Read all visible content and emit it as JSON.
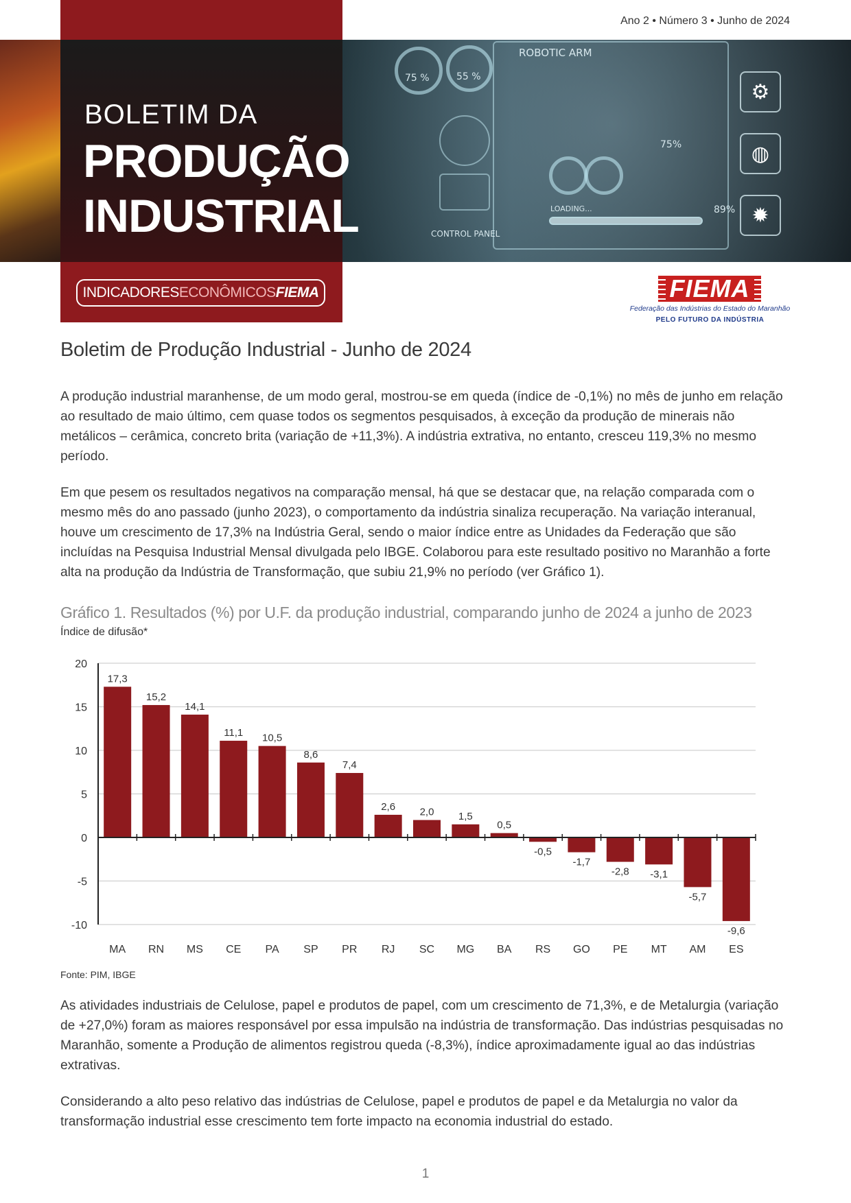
{
  "header": {
    "issue": "Ano 2 • Número 3 • Junho de 2024",
    "title_small": "BOLETIM DA",
    "title_line1": "PRODUÇÃO",
    "title_line2": "INDUSTRIAL",
    "tag_part1": "INDICADORES",
    "tag_part2": "ECONÔMICOS",
    "tag_part3": "FIEMA",
    "hud": {
      "robotic_arm": "ROBOTIC ARM",
      "pct75": "75 %",
      "pct55": "55 %",
      "pct75b": "75%",
      "pct89": "89%",
      "loading": "LOADING...",
      "control_panel": "CONTROL PANEL"
    },
    "icons": [
      "robot-arm-icon",
      "globe-icon",
      "gear-icon"
    ]
  },
  "logo": {
    "name": "FIEMA",
    "subtitle": "Federação das Indústrias do Estado do Maranhão",
    "tagline": "PELO FUTURO DA INDÚSTRIA"
  },
  "document": {
    "title": "Boletim de Produção Industrial - Junho de 2024",
    "paragraph1": "A produção industrial maranhense, de um modo geral, mostrou-se em queda (índice de -0,1%) no mês de junho em relação ao resultado de maio último, cem quase todos os segmentos pesquisados, à exceção da produção de minerais não metálicos – cerâmica, concreto brita (variação de +11,3%). A indústria extrativa, no entanto, cresceu 119,3% no mesmo período.",
    "paragraph2": "Em que pesem os resultados negativos na comparação mensal, há que se destacar que, na relação comparada com o mesmo mês do ano passado (junho 2023), o comportamento da indústria sinaliza recuperação. Na variação interanual, houve um crescimento de 17,3% na Indústria Geral, sendo o maior índice entre as Unidades da Federação que são incluídas na Pesquisa Industrial Mensal divulgada pelo IBGE. Colaborou para este resultado positivo no Maranhão a forte alta na produção da Indústria de Transformação, que subiu 21,9% no período (ver Gráfico 1).",
    "paragraph3": "As atividades industriais de Celulose, papel e produtos de papel, com um crescimento de 71,3%, e de Metalurgia (variação de +27,0%) foram as maiores responsável por essa impulsão na indústria de transformação. Das indústrias pesquisadas no Maranhão, somente a Produção de alimentos registrou queda (-8,3%), índice aproximadamente igual ao das indústrias extrativas.",
    "paragraph4": "Considerando a alto peso relativo das indústrias de Celulose, papel e produtos de papel e da Metalurgia no valor da transformação industrial esse crescimento tem forte impacto na economia industrial do estado.",
    "source": "Fonte: PIM, IBGE",
    "page_number": "1"
  },
  "chart_data": {
    "type": "bar",
    "title": "Gráfico 1. Resultados (%) por U.F. da produção industrial, comparando junho de 2024 a junho de 2023",
    "subtitle": "Índice de difusão*",
    "categories": [
      "MA",
      "RN",
      "MS",
      "CE",
      "PA",
      "SP",
      "PR",
      "RJ",
      "SC",
      "MG",
      "BA",
      "RS",
      "GO",
      "PE",
      "MT",
      "AM",
      "ES"
    ],
    "values": [
      17.3,
      15.2,
      14.1,
      11.1,
      10.5,
      8.6,
      7.4,
      2.6,
      2.0,
      1.5,
      0.5,
      -0.5,
      -1.7,
      -2.8,
      -3.1,
      -5.7,
      -9.6
    ],
    "labels": [
      "17,3",
      "15,2",
      "14,1",
      "11,1",
      "10,5",
      "8,6",
      "7,4",
      "2,6",
      "2,0",
      "1,5",
      "0,5",
      "-0,5",
      "-1,7",
      "-2,8",
      "-3,1",
      "-5,7",
      "-9,6"
    ],
    "yticks": [
      "20",
      "15",
      "10",
      "5",
      "0",
      "-5",
      "-10"
    ],
    "ylim": [
      -10,
      20
    ],
    "grid": true,
    "bar_color": "#8e1a1e"
  }
}
